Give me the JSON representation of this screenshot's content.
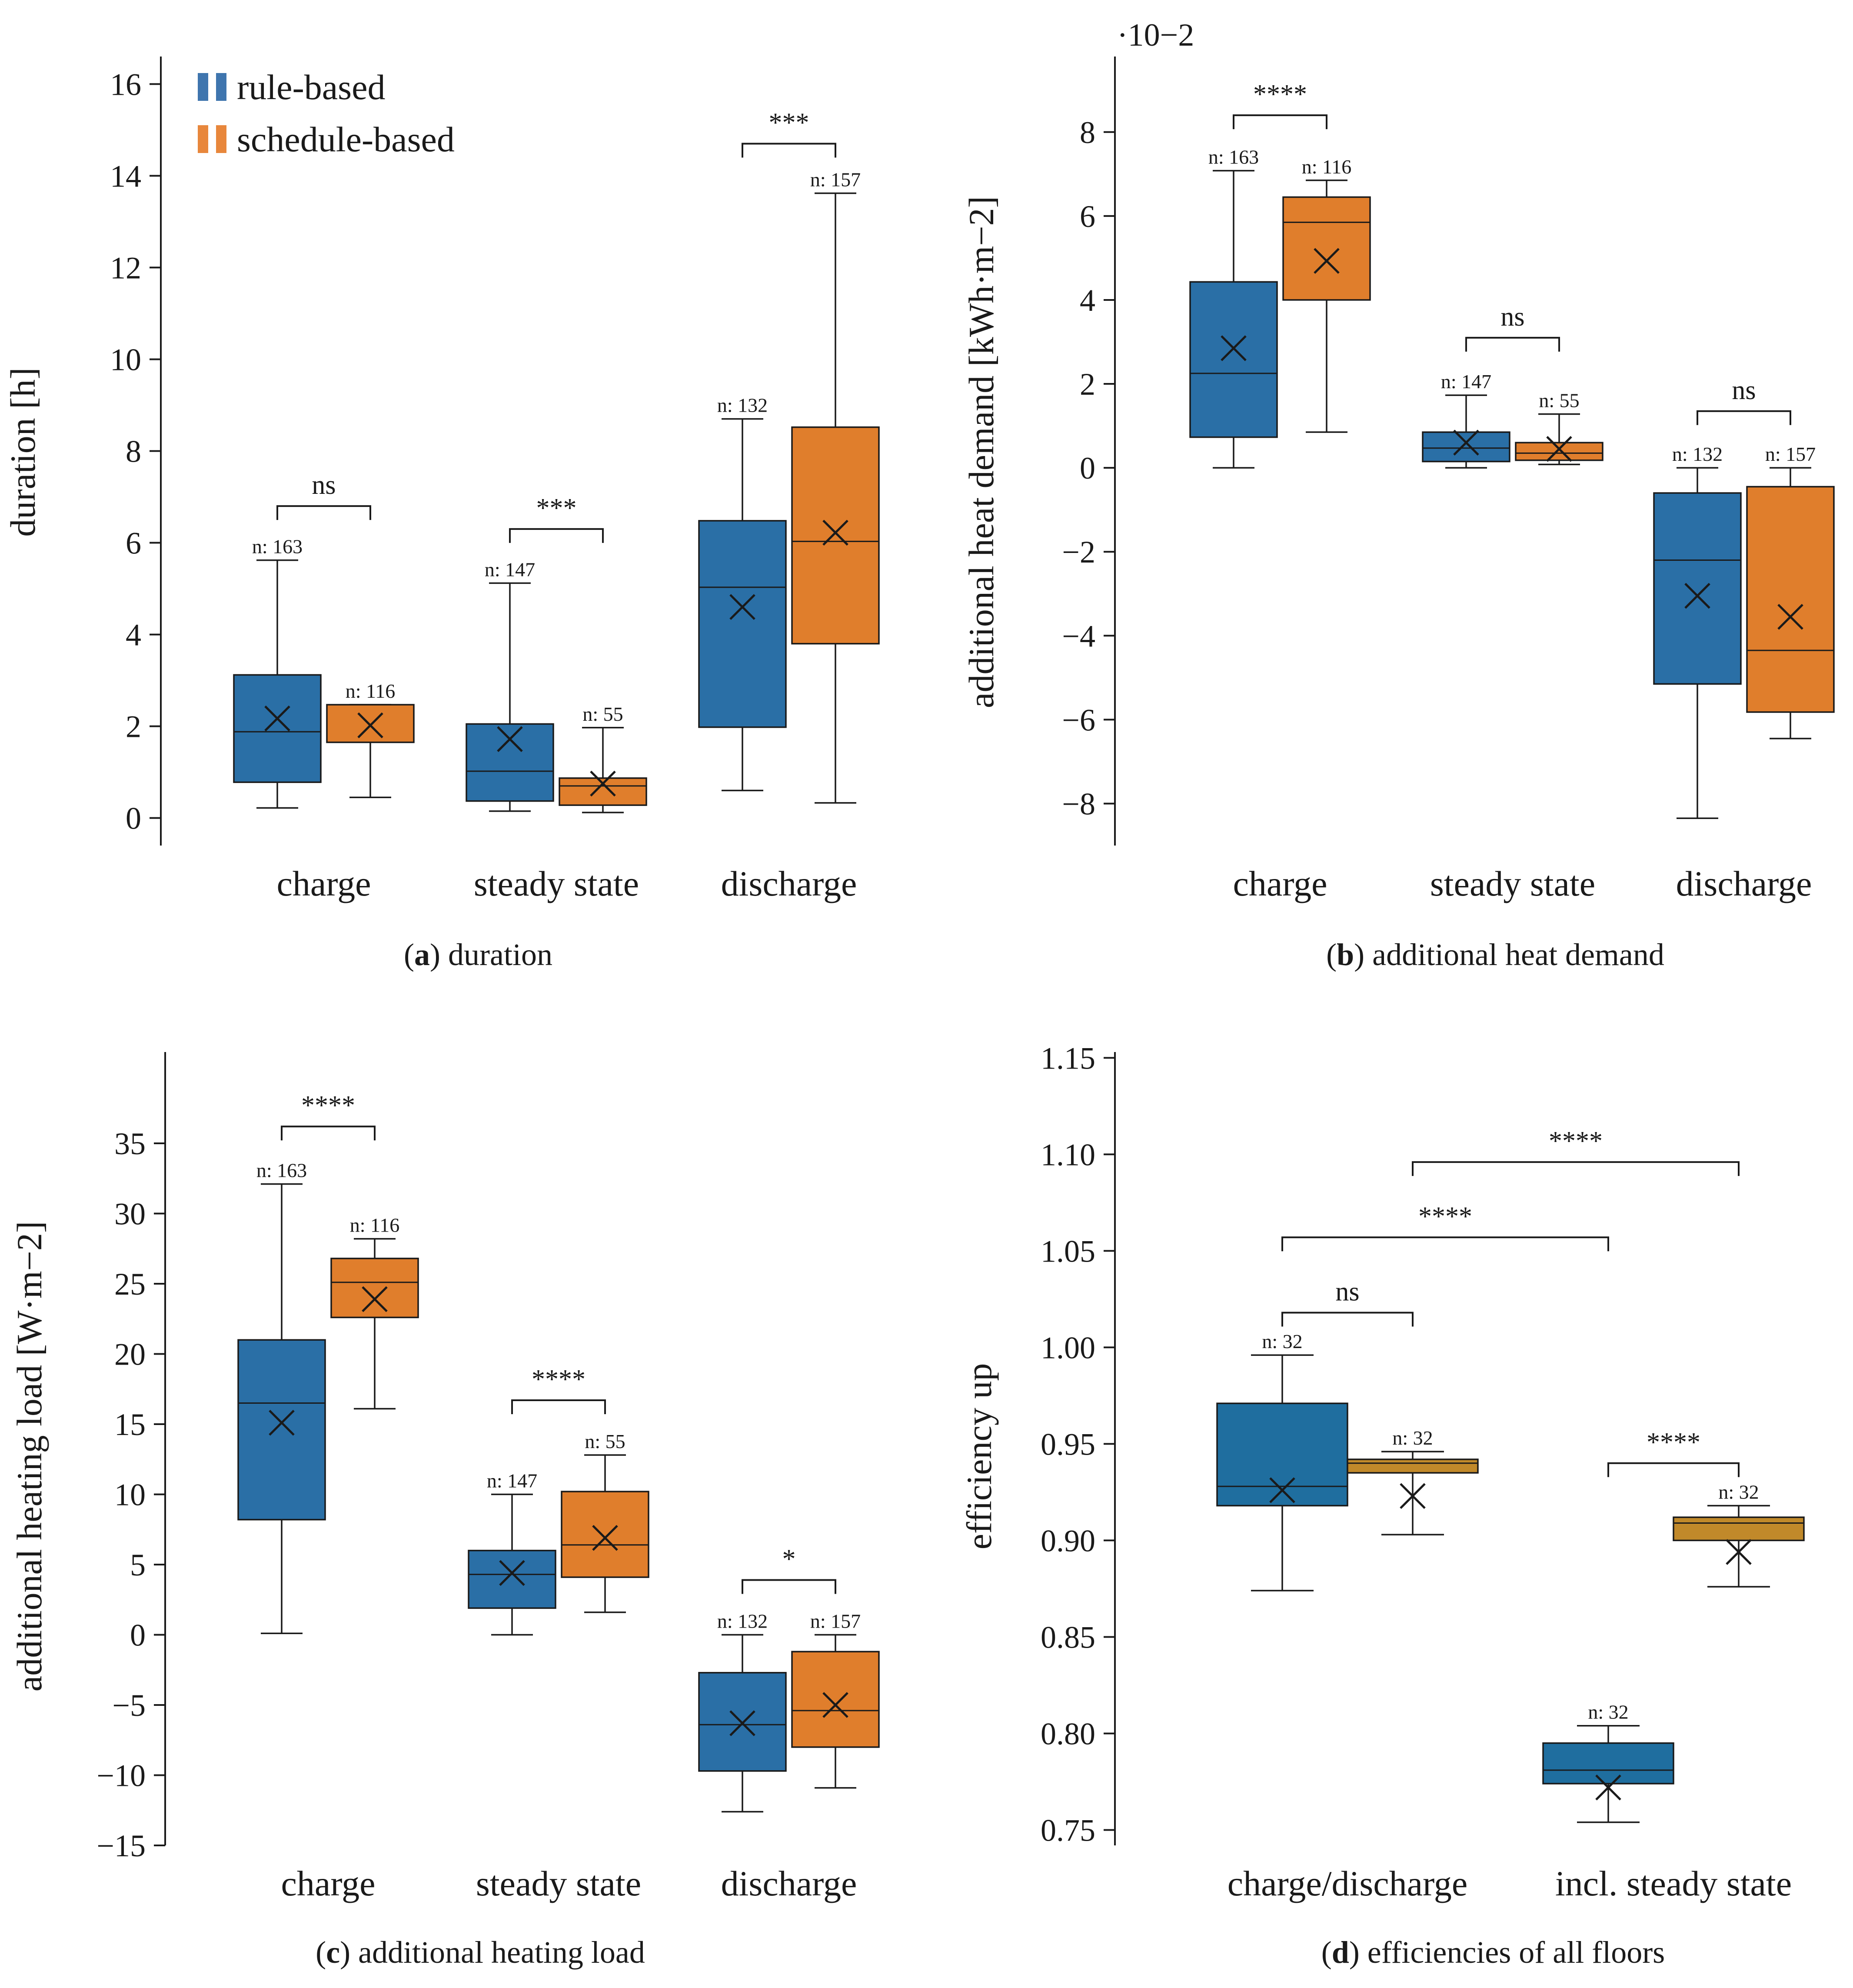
{
  "colors": {
    "rule_based": "#2a6fa6",
    "schedule_based": "#e07e2c",
    "efficiency_charge": "#1f6e9f",
    "efficiency_incl": "#c1892a",
    "ink": "#1a1a1a"
  },
  "legend": {
    "items": [
      {
        "label": "rule-based",
        "color": "#3f75ae"
      },
      {
        "label": "schedule-based",
        "color": "#e8873c"
      }
    ]
  },
  "chart_data": [
    {
      "type": "box",
      "caption_letter": "a",
      "caption_text": "duration",
      "ylabel": "duration [h]",
      "ylim": [
        -0.6,
        16.6
      ],
      "yticks": [
        0,
        2,
        4,
        6,
        8,
        10,
        12,
        14,
        16
      ],
      "ytick_labels": [
        "0",
        "2",
        "4",
        "6",
        "8",
        "10",
        "12",
        "14",
        "16"
      ],
      "categories": [
        "charge",
        "steady state",
        "discharge"
      ],
      "boxes": [
        {
          "cat": 0,
          "series": "rule-based",
          "whisker_low": 0.22,
          "q1": 0.78,
          "median": 1.88,
          "q3": 3.12,
          "whisker_high": 5.62,
          "mean": 2.17,
          "n": "n: 163"
        },
        {
          "cat": 0,
          "series": "schedule-based",
          "whisker_low": 0.45,
          "q1": 1.65,
          "median": 2.47,
          "q3": 2.47,
          "whisker_high": 2.47,
          "mean": 2.02,
          "n": "n: 116"
        },
        {
          "cat": 1,
          "series": "rule-based",
          "whisker_low": 0.15,
          "q1": 0.37,
          "median": 1.02,
          "q3": 2.05,
          "whisker_high": 5.12,
          "mean": 1.72,
          "n": "n: 147"
        },
        {
          "cat": 1,
          "series": "schedule-based",
          "whisker_low": 0.12,
          "q1": 0.28,
          "median": 0.7,
          "q3": 0.87,
          "whisker_high": 1.97,
          "mean": 0.75,
          "n": "n: 55"
        },
        {
          "cat": 2,
          "series": "rule-based",
          "whisker_low": 0.6,
          "q1": 1.98,
          "median": 5.03,
          "q3": 6.48,
          "whisker_high": 8.7,
          "mean": 4.6,
          "n": "n: 132"
        },
        {
          "cat": 2,
          "series": "schedule-based",
          "whisker_low": 0.33,
          "q1": 3.8,
          "median": 6.03,
          "q3": 8.52,
          "whisker_high": 13.62,
          "mean": 6.22,
          "n": "n: 157"
        }
      ],
      "significance": [
        {
          "from_box": 0,
          "to_box": 1,
          "level": 6.8,
          "label": "ns"
        },
        {
          "from_box": 2,
          "to_box": 3,
          "level": 6.3,
          "label": "***"
        },
        {
          "from_box": 4,
          "to_box": 5,
          "level": 14.7,
          "label": "***"
        }
      ]
    },
    {
      "type": "box",
      "caption_letter": "b",
      "caption_text": "additional heat demand",
      "ylabel": "additional heat demand [kWh·m−2]",
      "exponent": "·10−2",
      "ylim": [
        -9.0,
        9.8
      ],
      "yticks": [
        -8,
        -6,
        -4,
        -2,
        0,
        2,
        4,
        6,
        8
      ],
      "ytick_labels": [
        "−8",
        "−6",
        "−4",
        "−2",
        "0",
        "2",
        "4",
        "6",
        "8"
      ],
      "categories": [
        "charge",
        "steady state",
        "discharge"
      ],
      "boxes": [
        {
          "cat": 0,
          "series": "rule-based",
          "whisker_low": 0.0,
          "q1": 0.73,
          "median": 2.25,
          "q3": 4.43,
          "whisker_high": 7.08,
          "mean": 2.85,
          "n": "n: 163"
        },
        {
          "cat": 0,
          "series": "schedule-based",
          "whisker_low": 0.85,
          "q1": 4.0,
          "median": 5.85,
          "q3": 6.45,
          "whisker_high": 6.85,
          "mean": 4.93,
          "n": "n: 116"
        },
        {
          "cat": 1,
          "series": "rule-based",
          "whisker_low": 0.0,
          "q1": 0.15,
          "median": 0.47,
          "q3": 0.85,
          "whisker_high": 1.73,
          "mean": 0.6,
          "n": "n: 147"
        },
        {
          "cat": 1,
          "series": "schedule-based",
          "whisker_low": 0.08,
          "q1": 0.18,
          "median": 0.35,
          "q3": 0.6,
          "whisker_high": 1.28,
          "mean": 0.45,
          "n": "n: 55"
        },
        {
          "cat": 2,
          "series": "rule-based",
          "whisker_low": -8.35,
          "q1": -5.15,
          "median": -2.2,
          "q3": -0.6,
          "whisker_high": 0.0,
          "mean": -3.05,
          "n": "n: 132"
        },
        {
          "cat": 2,
          "series": "schedule-based",
          "whisker_low": -6.45,
          "q1": -5.82,
          "median": -4.35,
          "q3": -0.45,
          "whisker_high": 0.0,
          "mean": -3.55,
          "n": "n: 157"
        }
      ],
      "significance": [
        {
          "from_box": 0,
          "to_box": 1,
          "level": 8.4,
          "label": "****"
        },
        {
          "from_box": 2,
          "to_box": 3,
          "level": 3.1,
          "label": "ns"
        },
        {
          "from_box": 4,
          "to_box": 5,
          "level": 1.35,
          "label": "ns"
        }
      ]
    },
    {
      "type": "box",
      "caption_letter": "c",
      "caption_text": "additional heating load",
      "ylabel": "additional heating load [W·m−2]",
      "ylim": [
        -15.0,
        41.5
      ],
      "yticks": [
        -15,
        -10,
        -5,
        0,
        5,
        10,
        15,
        20,
        25,
        30,
        35
      ],
      "ytick_labels": [
        "−15",
        "−10",
        "−5",
        "0",
        "5",
        "10",
        "15",
        "20",
        "25",
        "30",
        "35"
      ],
      "categories": [
        "charge",
        "steady state",
        "discharge"
      ],
      "boxes": [
        {
          "cat": 0,
          "series": "rule-based",
          "whisker_low": 0.1,
          "q1": 8.2,
          "median": 16.5,
          "q3": 21.0,
          "whisker_high": 32.1,
          "mean": 15.1,
          "n": "n: 163"
        },
        {
          "cat": 0,
          "series": "schedule-based",
          "whisker_low": 16.1,
          "q1": 22.6,
          "median": 25.1,
          "q3": 26.8,
          "whisker_high": 28.2,
          "mean": 23.9,
          "n": "n: 116"
        },
        {
          "cat": 1,
          "series": "rule-based",
          "whisker_low": 0.0,
          "q1": 1.9,
          "median": 4.3,
          "q3": 6.0,
          "whisker_high": 10.0,
          "mean": 4.4,
          "n": "n: 147"
        },
        {
          "cat": 1,
          "series": "schedule-based",
          "whisker_low": 1.6,
          "q1": 4.1,
          "median": 6.4,
          "q3": 10.2,
          "whisker_high": 12.8,
          "mean": 6.9,
          "n": "n: 55"
        },
        {
          "cat": 2,
          "series": "rule-based",
          "whisker_low": -12.6,
          "q1": -9.7,
          "median": -6.4,
          "q3": -2.7,
          "whisker_high": 0.0,
          "mean": -6.3,
          "n": "n: 132"
        },
        {
          "cat": 2,
          "series": "schedule-based",
          "whisker_low": -10.9,
          "q1": -8.0,
          "median": -5.4,
          "q3": -1.2,
          "whisker_high": 0.0,
          "mean": -5.0,
          "n": "n: 157"
        }
      ],
      "significance": [
        {
          "from_box": 0,
          "to_box": 1,
          "level": 36.2,
          "label": "****"
        },
        {
          "from_box": 2,
          "to_box": 3,
          "level": 16.7,
          "label": "****"
        },
        {
          "from_box": 4,
          "to_box": 5,
          "level": 3.9,
          "label": "*"
        }
      ]
    },
    {
      "type": "box",
      "caption_letter": "d",
      "caption_text": "efficiencies of all floors",
      "ylabel": "efficiency up",
      "ylim": [
        0.742,
        1.153
      ],
      "yticks": [
        0.75,
        0.8,
        0.85,
        0.9,
        0.95,
        1.0,
        1.05,
        1.1,
        1.15
      ],
      "ytick_labels": [
        "0.75",
        "0.80",
        "0.85",
        "0.90",
        "0.95",
        "1.00",
        "1.05",
        "1.10",
        "1.15"
      ],
      "categories": [
        "charge/discharge",
        "incl. steady state"
      ],
      "boxes": [
        {
          "cat": 0,
          "series": "rule-based",
          "whisker_low": 0.874,
          "q1": 0.918,
          "median": 0.928,
          "q3": 0.971,
          "whisker_high": 0.996,
          "mean": 0.926,
          "n": "n: 32"
        },
        {
          "cat": 0,
          "series": "schedule-based",
          "whisker_low": 0.903,
          "q1": 0.935,
          "median": 0.94,
          "q3": 0.942,
          "whisker_high": 0.946,
          "mean": 0.923,
          "n": "n: 32"
        },
        {
          "cat": 1,
          "series": "rule-based",
          "whisker_low": 0.754,
          "q1": 0.774,
          "median": 0.781,
          "q3": 0.795,
          "whisker_high": 0.804,
          "mean": 0.772,
          "n": "n: 32"
        },
        {
          "cat": 1,
          "series": "schedule-based",
          "whisker_low": 0.876,
          "q1": 0.9,
          "median": 0.909,
          "q3": 0.912,
          "whisker_high": 0.918,
          "mean": 0.894,
          "n": "n: 32"
        }
      ],
      "significance": [
        {
          "from_box": 0,
          "to_box": 1,
          "level": 1.018,
          "label": "ns"
        },
        {
          "from_box": 0,
          "to_box": 2,
          "level": 1.057,
          "label": "****"
        },
        {
          "from_box": 1,
          "to_box": 3,
          "level": 1.096,
          "label": "****"
        },
        {
          "from_box": 2,
          "to_box": 3,
          "level": 0.94,
          "label": "****"
        }
      ]
    }
  ]
}
